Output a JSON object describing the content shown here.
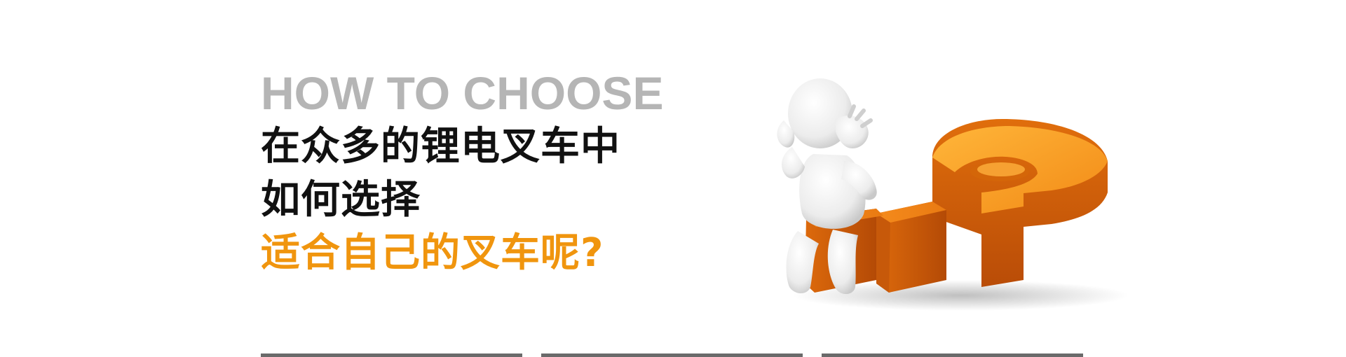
{
  "headline": {
    "eyebrow": "HOW TO CHOOSE",
    "line1": "在众多的锂电叉车中",
    "line2": "如何选择",
    "line3": "适合自己的叉车呢?"
  },
  "colors": {
    "eyebrow": "#b5b5b5",
    "title": "#111111",
    "accent": "#f0950e",
    "question_mark_light": "#ffa31f",
    "question_mark_dark": "#c4530a"
  },
  "illustration": {
    "icon": "thinking-figure-with-question-mark-icon"
  }
}
